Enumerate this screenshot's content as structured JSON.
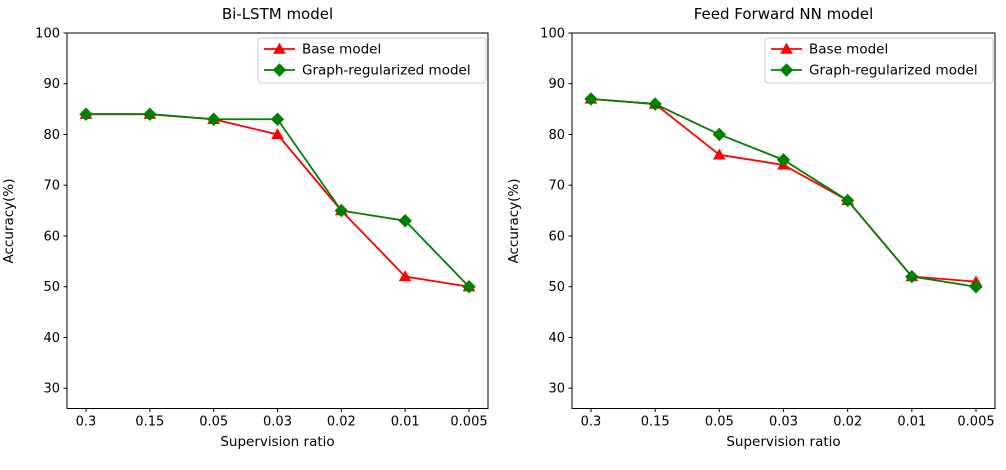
{
  "figure": {
    "background": "#ffffff",
    "axis_color": "#000000",
    "text_color": "#000000",
    "legend_border_color": "#cccccc",
    "legend_fill_color": "#ffffff"
  },
  "chart_data": [
    {
      "type": "line",
      "title": "Bi-LSTM model",
      "xlabel": "Supervision ratio",
      "ylabel": "Accuracy(%)",
      "categories": [
        "0.3",
        "0.15",
        "0.05",
        "0.03",
        "0.02",
        "0.01",
        "0.005"
      ],
      "yticks": [
        30,
        40,
        50,
        60,
        70,
        80,
        90,
        100
      ],
      "ylim": [
        26,
        100
      ],
      "grid": false,
      "legend_position": "upper right",
      "series": [
        {
          "name": "Base model",
          "color": "#ff0000",
          "marker": "triangle",
          "values": [
            84,
            84,
            83,
            80,
            65,
            52,
            50
          ]
        },
        {
          "name": "Graph-regularized model",
          "color": "#008000",
          "marker": "diamond",
          "values": [
            84,
            84,
            83,
            83,
            65,
            63,
            50
          ]
        }
      ]
    },
    {
      "type": "line",
      "title": "Feed Forward NN model",
      "xlabel": "Supervision ratio",
      "ylabel": "Accuracy(%)",
      "categories": [
        "0.3",
        "0.15",
        "0.05",
        "0.03",
        "0.02",
        "0.01",
        "0.005"
      ],
      "yticks": [
        30,
        40,
        50,
        60,
        70,
        80,
        90,
        100
      ],
      "ylim": [
        26,
        100
      ],
      "grid": false,
      "legend_position": "upper right",
      "series": [
        {
          "name": "Base model",
          "color": "#ff0000",
          "marker": "triangle",
          "values": [
            87,
            86,
            76,
            74,
            67,
            52,
            51
          ]
        },
        {
          "name": "Graph-regularized model",
          "color": "#008000",
          "marker": "diamond",
          "values": [
            87,
            86,
            80,
            75,
            67,
            52,
            50
          ]
        }
      ]
    }
  ]
}
